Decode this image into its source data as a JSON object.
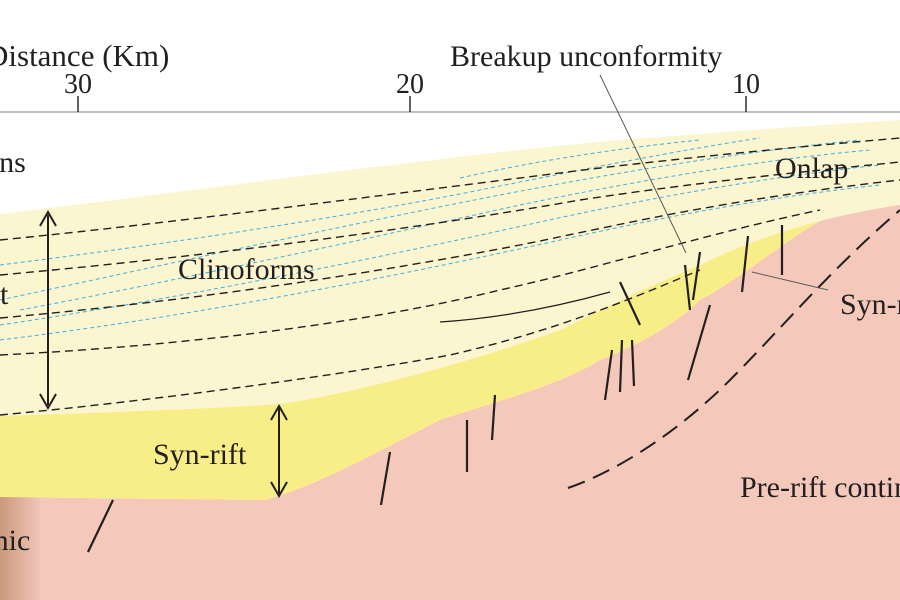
{
  "axis": {
    "label": "Distance (Km)",
    "ticks": [
      "30",
      "20",
      "10"
    ]
  },
  "labels": {
    "post_rift_top": "Post-rift formations",
    "post_rift_side": "Post-rift",
    "clinoforms": "Clinoforms",
    "onlap": "Onlap",
    "breakup": "Breakup unconformity",
    "syn_rift_main": "Syn-rift",
    "syn_rift_right": "Syn-rift",
    "oceanic": "Oceanic",
    "pre_rift": "Pre-rift continental crust"
  },
  "colors": {
    "post_rift": "#fbf6cf",
    "syn_rift": "#f8ee88",
    "basement": "#f4c8bb",
    "oceanic_edge": "#d9a588",
    "line": "#231f20",
    "clinoform": "#3ab0e6"
  }
}
